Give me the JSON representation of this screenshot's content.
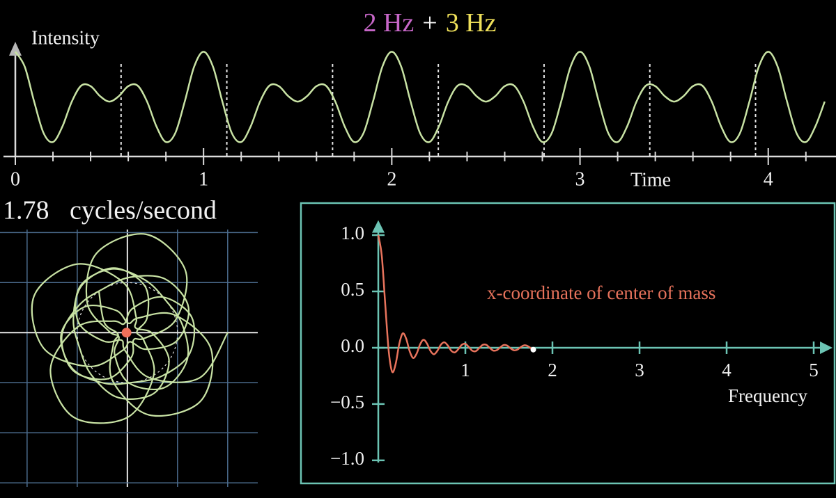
{
  "chart_data": [
    {
      "type": "line",
      "title_parts": [
        {
          "text": "2 Hz",
          "color": "#c767c8"
        },
        {
          "text": "+",
          "color": "#f2f2f2"
        },
        {
          "text": "3 Hz",
          "color": "#efe05a"
        }
      ],
      "ylabel": "Intensity",
      "xlabel": "Time",
      "color": "#c8e2a4",
      "x": [
        0,
        0.05,
        0.1,
        0.15,
        0.2,
        0.25,
        0.3,
        0.35,
        0.4,
        0.45,
        0.5,
        0.55,
        0.6,
        0.65,
        0.7,
        0.75,
        0.8,
        0.85,
        0.9,
        0.95,
        1,
        1.05,
        1.1,
        1.15,
        1.2,
        1.25,
        1.3,
        1.35,
        1.4,
        1.45,
        1.5,
        1.55,
        1.6,
        1.65,
        1.7,
        1.75,
        1.8,
        1.85,
        1.9,
        1.95,
        2,
        2.05,
        2.1,
        2.15,
        2.2,
        2.25,
        2.3,
        2.35,
        2.4,
        2.45,
        2.5,
        2.55,
        2.6,
        2.65,
        2.7,
        2.75,
        2.8,
        2.85,
        2.9,
        2.95,
        3,
        3.05,
        3.1,
        3.15,
        3.2,
        3.25,
        3.3,
        3.35,
        3.4,
        3.45,
        3.5,
        3.55,
        3.6,
        3.65,
        3.7,
        3.75,
        3.8,
        3.85,
        3.9,
        3.95,
        4,
        4.05,
        4.1,
        4.15,
        4.2,
        4.25,
        4.3
      ],
      "values": [
        2,
        1.7,
        1,
        0.37,
        0.19,
        0.5,
        1,
        1.32,
        1.31,
        1.11,
        1,
        1.11,
        1.31,
        1.32,
        1,
        0.5,
        0.19,
        0.37,
        1,
        1.7,
        2,
        1.7,
        1,
        0.37,
        0.19,
        0.5,
        1,
        1.32,
        1.31,
        1.11,
        1,
        1.11,
        1.31,
        1.32,
        1,
        0.5,
        0.19,
        0.37,
        1,
        1.7,
        2,
        1.7,
        1,
        0.37,
        0.19,
        0.5,
        1,
        1.32,
        1.31,
        1.11,
        1,
        1.11,
        1.31,
        1.32,
        1,
        0.5,
        0.19,
        0.37,
        1,
        1.7,
        2,
        1.7,
        1,
        0.37,
        0.19,
        0.5,
        1,
        1.32,
        1.31,
        1.11,
        1,
        1.11,
        1.31,
        1.32,
        1,
        0.5,
        0.19,
        0.37,
        1,
        1.7,
        2,
        1.7,
        1,
        0.37,
        0.19,
        0.5,
        1
      ],
      "xlim": [
        0,
        4.36
      ],
      "ylim": [
        -0.1,
        2.2
      ],
      "xticks": [
        0,
        1,
        2,
        3,
        4
      ],
      "xminorticks": [
        0.2,
        0.4,
        0.6,
        0.8,
        1.2,
        1.4,
        1.6,
        1.8,
        2.2,
        2.4,
        2.6,
        2.8,
        3.2,
        3.4,
        3.6,
        3.8,
        4.2
      ]
    },
    {
      "type": "winding",
      "frequency": 1.78,
      "label": "cycles/second",
      "color": "#c8e2a4",
      "grid_color": "#4c6c8e",
      "dot_color": "#f0705a",
      "circle_radius": 1,
      "xlim": [
        -2.54,
        2.6
      ],
      "ylim": [
        -3.08,
        2.06
      ],
      "xticks": [
        -2,
        -1,
        0,
        1,
        2
      ],
      "yticks": [
        -3,
        -2,
        -1,
        0,
        1,
        2
      ]
    },
    {
      "type": "line",
      "annotation": "x-coordinate of center of mass",
      "xlabel": "Frequency",
      "color": "#e8735c",
      "axis_color": "#6cc4b4",
      "x": [
        0,
        0.04,
        0.08,
        0.12,
        0.16,
        0.2,
        0.24,
        0.28,
        0.32,
        0.36,
        0.4,
        0.44,
        0.48,
        0.52,
        0.56,
        0.6,
        0.64,
        0.68,
        0.72,
        0.76,
        0.8,
        0.84,
        0.88,
        0.92,
        0.96,
        1,
        1.04,
        1.08,
        1.12,
        1.16,
        1.2,
        1.24,
        1.28,
        1.32,
        1.36,
        1.4,
        1.44,
        1.48,
        1.52,
        1.56,
        1.6,
        1.64,
        1.68,
        1.72,
        1.76,
        1.78
      ],
      "values": [
        1,
        0.816,
        0.384,
        -0.031,
        -0.214,
        -0.142,
        0.031,
        0.127,
        0.081,
        -0.03,
        -0.091,
        -0.053,
        0.03,
        0.071,
        0.036,
        -0.029,
        -0.058,
        -0.025,
        0.029,
        0.048,
        0.018,
        -0.028,
        -0.041,
        -0.012,
        0.027,
        0.035,
        0.006,
        -0.027,
        -0.03,
        -0.002,
        0.026,
        0.026,
        -0.001,
        -0.025,
        -0.022,
        0.003,
        0.024,
        0.019,
        -0.006,
        -0.023,
        -0.016,
        0.008,
        0.022,
        0.013,
        -0.009,
        -0.017
      ],
      "xlim": [
        0,
        5.2
      ],
      "ylim": [
        -1.05,
        1.12
      ],
      "xticks": [
        1,
        2,
        3,
        4,
        5
      ],
      "yticks": [
        {
          "value": 1,
          "label": "1.0"
        },
        0.5,
        {
          "value": 0,
          "label": "0.0"
        },
        {
          "value": -0.5,
          "label": "−0.5"
        },
        {
          "value": -1,
          "label": "−1.0"
        }
      ]
    }
  ]
}
